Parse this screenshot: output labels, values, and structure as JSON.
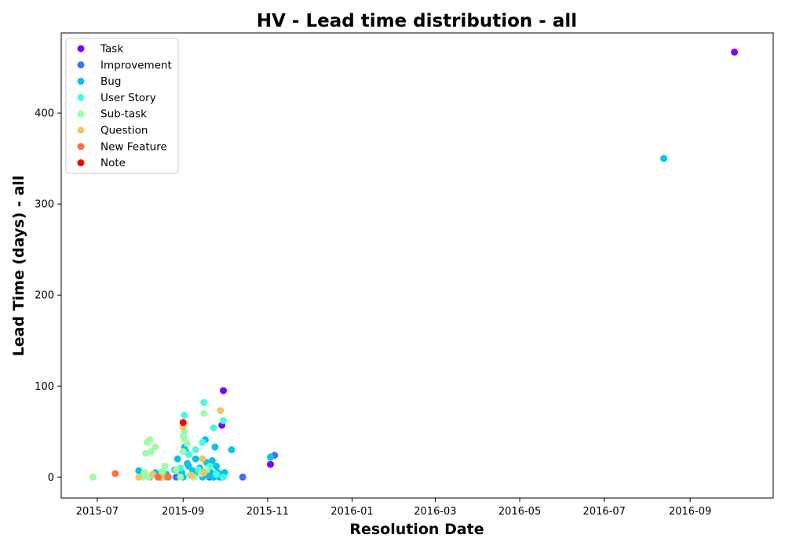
{
  "chart_data": {
    "type": "scatter",
    "title": "HV - Lead time distribution - all",
    "xlabel": "Resolution Date",
    "ylabel": "Lead Time (days) - all",
    "xlim": [
      "2015-06-05",
      "2016-10-31"
    ],
    "ylim": [
      -23,
      488
    ],
    "x_ticks": [
      "2015-07",
      "2015-09",
      "2015-11",
      "2016-01",
      "2016-03",
      "2016-05",
      "2016-07",
      "2016-09"
    ],
    "y_ticks": [
      0,
      100,
      200,
      300,
      400
    ],
    "grid": false,
    "legend_position": "top-left",
    "series": [
      {
        "name": "Task",
        "color": "#8000ff",
        "points": [
          [
            "2015-09-30",
            95
          ],
          [
            "2015-09-29",
            57
          ],
          [
            "2015-11-03",
            14
          ],
          [
            "2016-10-03",
            467
          ]
        ]
      },
      {
        "name": "Improvement",
        "color": "#3e71f9",
        "points": [
          [
            "2015-11-06",
            24
          ],
          [
            "2015-10-14",
            0
          ],
          [
            "2015-08-27",
            0
          ],
          [
            "2015-09-20",
            0
          ]
        ]
      },
      {
        "name": "Bug",
        "color": "#0dc3e5",
        "points": [
          [
            "2015-07-31",
            7
          ],
          [
            "2015-08-03",
            2
          ],
          [
            "2015-08-08",
            0
          ],
          [
            "2015-08-12",
            5
          ],
          [
            "2015-08-16",
            0
          ],
          [
            "2015-08-20",
            3
          ],
          [
            "2015-08-26",
            8
          ],
          [
            "2015-08-28",
            20
          ],
          [
            "2015-08-31",
            5
          ],
          [
            "2015-09-01",
            0
          ],
          [
            "2015-09-02",
            33
          ],
          [
            "2015-09-03",
            28
          ],
          [
            "2015-09-04",
            15
          ],
          [
            "2015-09-05",
            12
          ],
          [
            "2015-09-06",
            2
          ],
          [
            "2015-09-08",
            7
          ],
          [
            "2015-09-10",
            20
          ],
          [
            "2015-09-11",
            5
          ],
          [
            "2015-09-13",
            10
          ],
          [
            "2015-09-15",
            0
          ],
          [
            "2015-09-17",
            41
          ],
          [
            "2015-09-18",
            16
          ],
          [
            "2015-09-19",
            2
          ],
          [
            "2015-09-21",
            5
          ],
          [
            "2015-09-22",
            18
          ],
          [
            "2015-09-23",
            0
          ],
          [
            "2015-09-24",
            33
          ],
          [
            "2015-09-25",
            12
          ],
          [
            "2015-09-26",
            5
          ],
          [
            "2015-09-27",
            0
          ],
          [
            "2015-09-28",
            3
          ],
          [
            "2015-09-29",
            0
          ],
          [
            "2015-10-01",
            5
          ],
          [
            "2015-10-06",
            30
          ],
          [
            "2015-11-03",
            22
          ],
          [
            "2016-08-13",
            350
          ]
        ]
      },
      {
        "name": "User Story",
        "color": "#48fbe0",
        "points": [
          [
            "2015-09-02",
            68
          ],
          [
            "2015-09-16",
            82
          ],
          [
            "2015-09-23",
            54
          ],
          [
            "2015-09-30",
            62
          ],
          [
            "2015-09-15",
            38
          ],
          [
            "2015-09-10",
            30
          ],
          [
            "2015-09-05",
            25
          ],
          [
            "2015-09-20",
            12
          ],
          [
            "2015-09-12",
            8
          ],
          [
            "2015-09-25",
            3
          ],
          [
            "2015-08-30",
            10
          ],
          [
            "2015-09-30",
            0
          ]
        ]
      },
      {
        "name": "Sub-task",
        "color": "#9efca8",
        "points": [
          [
            "2015-06-28",
            0
          ],
          [
            "2015-08-05",
            26
          ],
          [
            "2015-08-06",
            38
          ],
          [
            "2015-08-08",
            41
          ],
          [
            "2015-08-09",
            28
          ],
          [
            "2015-08-12",
            33
          ],
          [
            "2015-08-04",
            5
          ],
          [
            "2015-08-03",
            0
          ],
          [
            "2015-08-07",
            0
          ],
          [
            "2015-08-10",
            2
          ],
          [
            "2015-08-14",
            0
          ],
          [
            "2015-08-17",
            6
          ],
          [
            "2015-08-19",
            12
          ],
          [
            "2015-08-22",
            0
          ],
          [
            "2015-08-27",
            8
          ],
          [
            "2015-08-30",
            0
          ],
          [
            "2015-09-01",
            45
          ],
          [
            "2015-09-02",
            50
          ],
          [
            "2015-09-02",
            42
          ],
          [
            "2015-09-04",
            37
          ],
          [
            "2015-09-01",
            28
          ],
          [
            "2015-09-06",
            2
          ],
          [
            "2015-09-09",
            0
          ],
          [
            "2015-09-14",
            4
          ],
          [
            "2015-09-16",
            70
          ],
          [
            "2015-09-18",
            8
          ]
        ]
      },
      {
        "name": "Question",
        "color": "#eec46c",
        "points": [
          [
            "2015-07-31",
            0
          ],
          [
            "2015-08-10",
            3
          ],
          [
            "2015-08-18",
            0
          ],
          [
            "2015-09-01",
            55
          ],
          [
            "2015-09-07",
            2
          ],
          [
            "2015-09-15",
            20
          ],
          [
            "2015-09-28",
            73
          ],
          [
            "2015-09-16",
            5
          ]
        ]
      },
      {
        "name": "New Feature",
        "color": "#ff6e3b",
        "points": [
          [
            "2015-07-14",
            4
          ],
          [
            "2015-08-14",
            0
          ],
          [
            "2015-08-21",
            0
          ]
        ]
      },
      {
        "name": "Note",
        "color": "#ff0000",
        "points": [
          [
            "2015-09-01",
            60
          ]
        ]
      }
    ]
  }
}
